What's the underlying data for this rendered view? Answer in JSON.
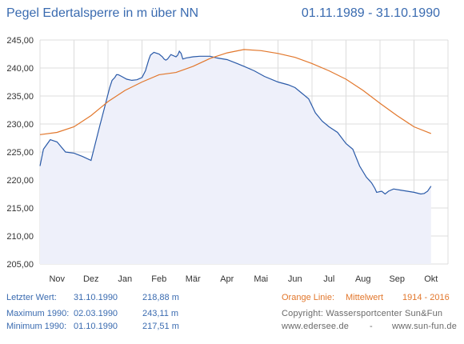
{
  "header": {
    "title": "Pegel Edertalsperre in m über NN",
    "date_range": "01.11.1989 - 31.10.1990"
  },
  "stats": [
    {
      "label": "Letzter Wert:",
      "date": "31.10.1990",
      "value": "218,88 m"
    },
    {
      "label": "Maximum 1990:",
      "date": "02.03.1990",
      "value": "243,11 m"
    },
    {
      "label": "Minimum  1990:",
      "date": "01.10.1990",
      "value": "217,51 m"
    }
  ],
  "legend": {
    "orange_label": "Orange Linie:",
    "orange_desc": "Mittelwert",
    "orange_years": "1914 - 2016"
  },
  "credits": {
    "copyright": "Copyright: Wassersportcenter Sun&Fun",
    "site1": "www.edersee.de",
    "separator": "-",
    "site2": "www.sun-fun.de"
  },
  "colors": {
    "accent": "#3a6bb0",
    "level_line": "#2a5aa8",
    "level_fill": "#eef0fa",
    "mean_line": "#e2772c",
    "grid": "#dcdcdc"
  },
  "chart_data": {
    "type": "area",
    "title": "Pegel Edertalsperre in m über NN",
    "ylabel": "",
    "xlabel": "",
    "ylim": [
      205,
      245
    ],
    "yticks": [
      "205,00",
      "210,00",
      "215,00",
      "220,00",
      "225,00",
      "230,00",
      "235,00",
      "240,00",
      "245,00"
    ],
    "categories": [
      "Nov",
      "Dez",
      "Jan",
      "Feb",
      "Mär",
      "Apr",
      "Mai",
      "Jun",
      "Jul",
      "Aug",
      "Sep",
      "Okt"
    ],
    "grid": true,
    "series": [
      {
        "role": "level",
        "x": [
          0,
          0.1,
          0.3,
          0.5,
          0.75,
          1.0,
          1.25,
          1.5,
          1.75,
          1.9,
          2.05,
          2.12,
          2.2,
          2.25,
          2.3,
          2.4,
          2.55,
          2.7,
          2.85,
          3.0,
          3.1,
          3.2,
          3.25,
          3.35,
          3.5,
          3.6,
          3.65,
          3.7,
          3.75,
          3.85,
          4.0,
          4.05,
          4.1,
          4.15,
          4.2,
          4.3,
          4.5,
          4.7,
          5.0,
          5.2,
          5.5,
          5.8,
          6.0,
          6.3,
          6.6,
          7.0,
          7.3,
          7.5,
          7.7,
          7.9,
          8.1,
          8.3,
          8.5,
          8.75,
          9.0,
          9.2,
          9.4,
          9.6,
          9.75,
          9.85,
          9.9,
          10.05,
          10.15,
          10.25,
          10.4,
          10.6,
          10.8,
          11.0,
          11.2,
          11.3,
          11.4,
          11.5
        ],
        "y": [
          222.5,
          225.5,
          227.2,
          226.8,
          225.0,
          224.8,
          224.2,
          223.5,
          229.5,
          233.0,
          236.5,
          237.8,
          238.3,
          238.8,
          238.8,
          238.5,
          238.0,
          237.8,
          237.9,
          238.3,
          239.5,
          241.5,
          242.3,
          242.8,
          242.5,
          242.0,
          241.6,
          241.4,
          241.6,
          242.4,
          242.0,
          242.3,
          243.0,
          242.6,
          241.6,
          241.8,
          242.0,
          242.1,
          242.1,
          241.8,
          241.5,
          240.8,
          240.3,
          239.5,
          238.5,
          237.5,
          237.0,
          236.5,
          235.5,
          234.5,
          232.0,
          230.5,
          229.5,
          228.5,
          226.5,
          225.5,
          222.5,
          220.5,
          219.5,
          218.5,
          217.8,
          218.0,
          217.5,
          218.0,
          218.4,
          218.2,
          218.0,
          217.8,
          217.5,
          217.6,
          218.0,
          218.9
        ]
      },
      {
        "role": "mean",
        "x": [
          0,
          0.5,
          1.0,
          1.5,
          2.0,
          2.5,
          3.0,
          3.5,
          4.0,
          4.5,
          5.0,
          5.5,
          6.0,
          6.5,
          7.0,
          7.5,
          8.0,
          8.5,
          9.0,
          9.5,
          10.0,
          10.5,
          11.0,
          11.5
        ],
        "y": [
          228.1,
          228.5,
          229.5,
          231.5,
          234.0,
          236.0,
          237.5,
          238.8,
          239.2,
          240.3,
          241.7,
          242.7,
          243.3,
          243.1,
          242.6,
          241.9,
          240.8,
          239.5,
          238.0,
          236.0,
          233.7,
          231.5,
          229.5,
          228.3
        ]
      }
    ]
  }
}
